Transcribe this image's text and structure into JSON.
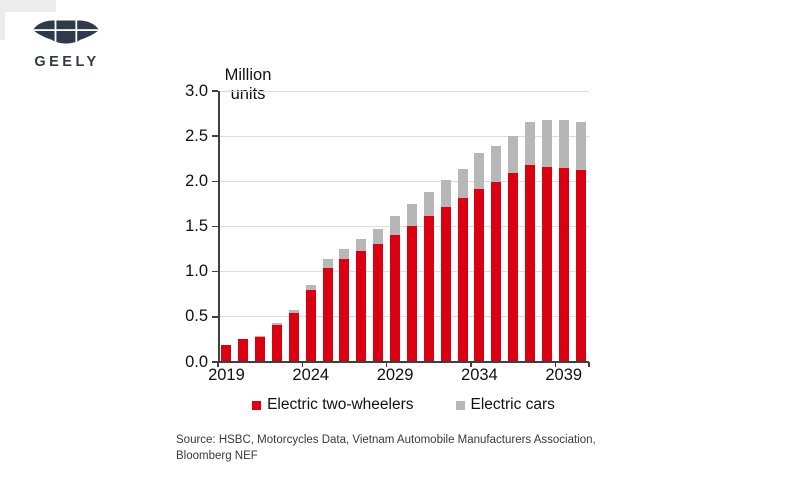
{
  "logo": {
    "text": "GEELY",
    "color": "#2e3a49"
  },
  "chart_data": {
    "type": "bar",
    "stacked": true,
    "ylabel": "Million units",
    "categories": [
      "2019",
      "2020",
      "2021",
      "2022",
      "2023",
      "2024",
      "2025",
      "2026",
      "2027",
      "2028",
      "2029",
      "2030",
      "2031",
      "2032",
      "2033",
      "2034",
      "2035",
      "2036",
      "2037",
      "2038",
      "2039",
      "2040"
    ],
    "series": [
      {
        "name": "Electric two-wheelers",
        "color": "#db0011",
        "values": [
          0.18,
          0.24,
          0.27,
          0.4,
          0.53,
          0.79,
          1.03,
          1.13,
          1.22,
          1.3,
          1.39,
          1.5,
          1.61,
          1.7,
          1.8,
          1.9,
          1.98,
          2.08,
          2.17,
          2.15,
          2.14,
          2.12
        ]
      },
      {
        "name": "Electric cars",
        "color": "#b7b7b7",
        "values": [
          0.0,
          0.0,
          0.01,
          0.02,
          0.04,
          0.05,
          0.1,
          0.11,
          0.13,
          0.16,
          0.21,
          0.24,
          0.26,
          0.3,
          0.33,
          0.4,
          0.4,
          0.41,
          0.48,
          0.52,
          0.53,
          0.53
        ]
      }
    ],
    "ylim": [
      0,
      3
    ],
    "ytick_step": 0.5,
    "ytick_labels": [
      "0.0",
      "0.5",
      "1.0",
      "1.5",
      "2.0",
      "2.5",
      "3.0"
    ],
    "xtick_labels": [
      "2019",
      "2024",
      "2029",
      "2034",
      "2039"
    ],
    "grid": true,
    "legend_position": "bottom"
  },
  "source": {
    "text": "Source: HSBC, Motorcycles Data, Vietnam Automobile Manufacturers Association,\nBloomberg NEF"
  }
}
